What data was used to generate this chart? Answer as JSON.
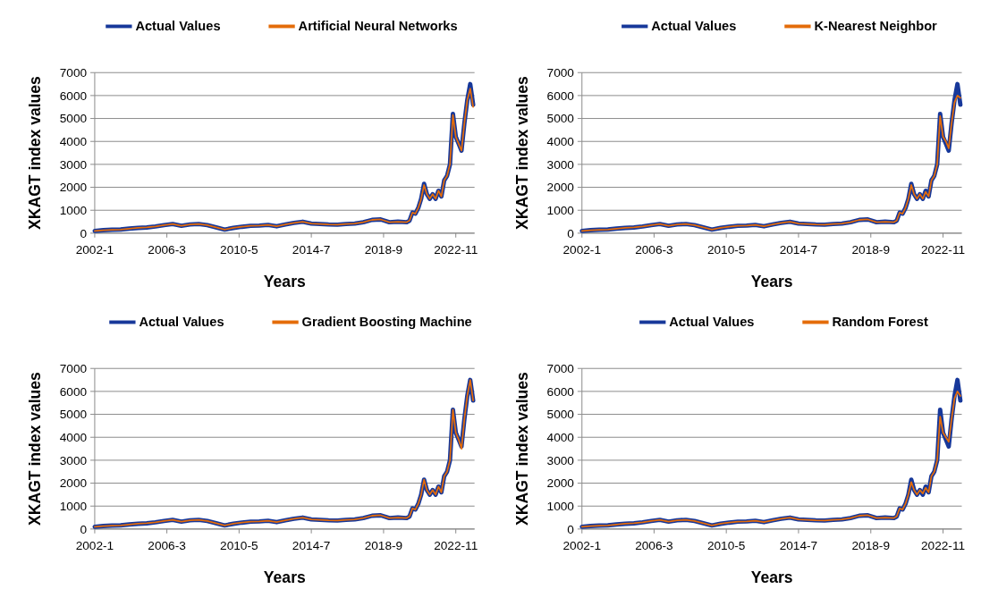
{
  "chart_data": [
    {
      "type": "line",
      "xlabel": "Years",
      "ylabel": "XKAGT index values",
      "legend": "top",
      "grid": "y",
      "ylim": [
        0,
        7000
      ],
      "yticks": [
        0,
        1000,
        2000,
        3000,
        4000,
        5000,
        6000,
        7000
      ],
      "xlim": [
        "2002-01",
        "2023-12"
      ],
      "xticks": [
        {
          "value": "2002-01",
          "label": "2002-1"
        },
        {
          "value": "2006-03",
          "label": "2006-3"
        },
        {
          "value": "2010-05",
          "label": "2010-5"
        },
        {
          "value": "2014-07",
          "label": "2014-7"
        },
        {
          "value": "2018-09",
          "label": "2018-9"
        },
        {
          "value": "2022-11",
          "label": "2022-11"
        }
      ],
      "x": [
        "2002-01",
        "2002-07",
        "2003-01",
        "2003-07",
        "2004-01",
        "2004-07",
        "2005-01",
        "2005-07",
        "2006-01",
        "2006-07",
        "2007-01",
        "2007-07",
        "2008-01",
        "2008-07",
        "2009-01",
        "2009-07",
        "2010-01",
        "2010-07",
        "2011-01",
        "2011-07",
        "2012-01",
        "2012-07",
        "2013-01",
        "2013-07",
        "2014-01",
        "2014-07",
        "2015-01",
        "2015-07",
        "2016-01",
        "2016-07",
        "2017-01",
        "2017-07",
        "2018-01",
        "2018-07",
        "2019-01",
        "2019-07",
        "2020-01",
        "2020-03",
        "2020-05",
        "2020-07",
        "2020-09",
        "2020-11",
        "2021-01",
        "2021-03",
        "2021-05",
        "2021-07",
        "2021-09",
        "2021-11",
        "2022-01",
        "2022-03",
        "2022-05",
        "2022-07",
        "2022-09",
        "2022-11",
        "2023-01",
        "2023-03",
        "2023-05",
        "2023-07",
        "2023-09",
        "2023-11"
      ],
      "series": [
        {
          "name": "Actual Values",
          "color": "#17389a",
          "values": [
            100,
            130,
            150,
            160,
            200,
            230,
            250,
            290,
            350,
            400,
            320,
            380,
            400,
            350,
            250,
            160,
            230,
            280,
            320,
            330,
            360,
            300,
            380,
            450,
            500,
            420,
            400,
            380,
            370,
            400,
            420,
            480,
            580,
            600,
            480,
            500,
            480,
            550,
            900,
            850,
            1100,
            1500,
            2150,
            1700,
            1500,
            1700,
            1500,
            1850,
            1600,
            2300,
            2500,
            3000,
            5200,
            4200,
            3900,
            3600,
            4800,
            5800,
            6500,
            5600
          ]
        },
        {
          "name": "Artificial Neural Networks",
          "color": "#e46c0a",
          "values": [
            100,
            130,
            150,
            160,
            200,
            230,
            250,
            290,
            350,
            400,
            320,
            380,
            400,
            350,
            250,
            160,
            230,
            280,
            320,
            330,
            360,
            300,
            380,
            450,
            500,
            420,
            400,
            380,
            370,
            400,
            420,
            480,
            580,
            600,
            480,
            500,
            480,
            550,
            900,
            850,
            1100,
            1500,
            2100,
            1700,
            1500,
            1700,
            1500,
            1850,
            1600,
            2300,
            2500,
            3000,
            5150,
            4200,
            3900,
            3600,
            4800,
            5800,
            6300,
            5500
          ]
        }
      ]
    },
    {
      "type": "line",
      "xlabel": "Years",
      "ylabel": "XKAGT index values",
      "legend": "top",
      "grid": "y",
      "ylim": [
        0,
        7000
      ],
      "yticks": [
        0,
        1000,
        2000,
        3000,
        4000,
        5000,
        6000,
        7000
      ],
      "xlim": [
        "2002-01",
        "2023-12"
      ],
      "xticks": [
        {
          "value": "2002-01",
          "label": "2002-1"
        },
        {
          "value": "2006-03",
          "label": "2006-3"
        },
        {
          "value": "2010-05",
          "label": "2010-5"
        },
        {
          "value": "2014-07",
          "label": "2014-7"
        },
        {
          "value": "2018-09",
          "label": "2018-9"
        },
        {
          "value": "2022-11",
          "label": "2022-11"
        }
      ],
      "x": [
        "2002-01",
        "2002-07",
        "2003-01",
        "2003-07",
        "2004-01",
        "2004-07",
        "2005-01",
        "2005-07",
        "2006-01",
        "2006-07",
        "2007-01",
        "2007-07",
        "2008-01",
        "2008-07",
        "2009-01",
        "2009-07",
        "2010-01",
        "2010-07",
        "2011-01",
        "2011-07",
        "2012-01",
        "2012-07",
        "2013-01",
        "2013-07",
        "2014-01",
        "2014-07",
        "2015-01",
        "2015-07",
        "2016-01",
        "2016-07",
        "2017-01",
        "2017-07",
        "2018-01",
        "2018-07",
        "2019-01",
        "2019-07",
        "2020-01",
        "2020-03",
        "2020-05",
        "2020-07",
        "2020-09",
        "2020-11",
        "2021-01",
        "2021-03",
        "2021-05",
        "2021-07",
        "2021-09",
        "2021-11",
        "2022-01",
        "2022-03",
        "2022-05",
        "2022-07",
        "2022-09",
        "2022-11",
        "2023-01",
        "2023-03",
        "2023-05",
        "2023-07",
        "2023-09",
        "2023-11"
      ],
      "series": [
        {
          "name": "Actual Values",
          "color": "#17389a",
          "values": [
            100,
            130,
            150,
            160,
            200,
            230,
            250,
            290,
            350,
            400,
            320,
            380,
            400,
            350,
            250,
            160,
            230,
            280,
            320,
            330,
            360,
            300,
            380,
            450,
            500,
            420,
            400,
            380,
            370,
            400,
            420,
            480,
            580,
            600,
            480,
            500,
            480,
            550,
            900,
            850,
            1100,
            1500,
            2150,
            1700,
            1500,
            1700,
            1500,
            1850,
            1600,
            2300,
            2500,
            3000,
            5200,
            4200,
            3900,
            3600,
            4800,
            5800,
            6500,
            5600
          ]
        },
        {
          "name": "K-Nearest Neighbor",
          "color": "#e46c0a",
          "values": [
            100,
            130,
            150,
            160,
            200,
            230,
            250,
            290,
            350,
            400,
            320,
            380,
            400,
            350,
            250,
            160,
            230,
            280,
            320,
            330,
            360,
            300,
            380,
            450,
            500,
            420,
            400,
            380,
            370,
            400,
            420,
            480,
            580,
            600,
            480,
            500,
            480,
            550,
            900,
            850,
            1100,
            1500,
            2100,
            1700,
            1500,
            1700,
            1500,
            1800,
            1600,
            2300,
            2500,
            3000,
            5100,
            4200,
            4000,
            3700,
            4800,
            5700,
            6000,
            5900
          ]
        }
      ]
    },
    {
      "type": "line",
      "xlabel": "Years",
      "ylabel": "XKAGT index values",
      "legend": "top",
      "grid": "y",
      "ylim": [
        0,
        7000
      ],
      "yticks": [
        0,
        1000,
        2000,
        3000,
        4000,
        5000,
        6000,
        7000
      ],
      "xlim": [
        "2002-01",
        "2023-12"
      ],
      "xticks": [
        {
          "value": "2002-01",
          "label": "2002-1"
        },
        {
          "value": "2006-03",
          "label": "2006-3"
        },
        {
          "value": "2010-05",
          "label": "2010-5"
        },
        {
          "value": "2014-07",
          "label": "2014-7"
        },
        {
          "value": "2018-09",
          "label": "2018-9"
        },
        {
          "value": "2022-11",
          "label": "2022-11"
        }
      ],
      "x": [
        "2002-01",
        "2002-07",
        "2003-01",
        "2003-07",
        "2004-01",
        "2004-07",
        "2005-01",
        "2005-07",
        "2006-01",
        "2006-07",
        "2007-01",
        "2007-07",
        "2008-01",
        "2008-07",
        "2009-01",
        "2009-07",
        "2010-01",
        "2010-07",
        "2011-01",
        "2011-07",
        "2012-01",
        "2012-07",
        "2013-01",
        "2013-07",
        "2014-01",
        "2014-07",
        "2015-01",
        "2015-07",
        "2016-01",
        "2016-07",
        "2017-01",
        "2017-07",
        "2018-01",
        "2018-07",
        "2019-01",
        "2019-07",
        "2020-01",
        "2020-03",
        "2020-05",
        "2020-07",
        "2020-09",
        "2020-11",
        "2021-01",
        "2021-03",
        "2021-05",
        "2021-07",
        "2021-09",
        "2021-11",
        "2022-01",
        "2022-03",
        "2022-05",
        "2022-07",
        "2022-09",
        "2022-11",
        "2023-01",
        "2023-03",
        "2023-05",
        "2023-07",
        "2023-09",
        "2023-11"
      ],
      "series": [
        {
          "name": "Actual Values",
          "color": "#17389a",
          "values": [
            100,
            130,
            150,
            160,
            200,
            230,
            250,
            290,
            350,
            400,
            320,
            380,
            400,
            350,
            250,
            160,
            230,
            280,
            320,
            330,
            360,
            300,
            380,
            450,
            500,
            420,
            400,
            380,
            370,
            400,
            420,
            480,
            580,
            600,
            480,
            500,
            480,
            550,
            900,
            850,
            1100,
            1500,
            2150,
            1700,
            1500,
            1700,
            1500,
            1850,
            1600,
            2300,
            2500,
            3000,
            5200,
            4200,
            3900,
            3600,
            4800,
            5800,
            6500,
            5600
          ]
        },
        {
          "name": "Gradient Boosting Machine",
          "color": "#e46c0a",
          "values": [
            100,
            130,
            150,
            160,
            200,
            230,
            250,
            290,
            350,
            400,
            320,
            380,
            400,
            350,
            250,
            160,
            230,
            280,
            320,
            330,
            360,
            300,
            380,
            450,
            500,
            420,
            400,
            380,
            370,
            400,
            420,
            480,
            580,
            600,
            480,
            500,
            480,
            550,
            900,
            850,
            1100,
            1500,
            2150,
            1700,
            1500,
            1700,
            1500,
            1850,
            1600,
            2300,
            2500,
            3000,
            5200,
            4200,
            3900,
            3500,
            4800,
            5800,
            6500,
            5600
          ]
        }
      ]
    },
    {
      "type": "line",
      "xlabel": "Years",
      "ylabel": "XKAGT index values",
      "legend": "top",
      "grid": "y",
      "ylim": [
        0,
        7000
      ],
      "yticks": [
        0,
        1000,
        2000,
        3000,
        4000,
        5000,
        6000,
        7000
      ],
      "xlim": [
        "2002-01",
        "2023-12"
      ],
      "xticks": [
        {
          "value": "2002-01",
          "label": "2002-1"
        },
        {
          "value": "2006-03",
          "label": "2006-3"
        },
        {
          "value": "2010-05",
          "label": "2010-5"
        },
        {
          "value": "2014-07",
          "label": "2014-7"
        },
        {
          "value": "2018-09",
          "label": "2018-9"
        },
        {
          "value": "2022-11",
          "label": "2022-11"
        }
      ],
      "x": [
        "2002-01",
        "2002-07",
        "2003-01",
        "2003-07",
        "2004-01",
        "2004-07",
        "2005-01",
        "2005-07",
        "2006-01",
        "2006-07",
        "2007-01",
        "2007-07",
        "2008-01",
        "2008-07",
        "2009-01",
        "2009-07",
        "2010-01",
        "2010-07",
        "2011-01",
        "2011-07",
        "2012-01",
        "2012-07",
        "2013-01",
        "2013-07",
        "2014-01",
        "2014-07",
        "2015-01",
        "2015-07",
        "2016-01",
        "2016-07",
        "2017-01",
        "2017-07",
        "2018-01",
        "2018-07",
        "2019-01",
        "2019-07",
        "2020-01",
        "2020-03",
        "2020-05",
        "2020-07",
        "2020-09",
        "2020-11",
        "2021-01",
        "2021-03",
        "2021-05",
        "2021-07",
        "2021-09",
        "2021-11",
        "2022-01",
        "2022-03",
        "2022-05",
        "2022-07",
        "2022-09",
        "2022-11",
        "2023-01",
        "2023-03",
        "2023-05",
        "2023-07",
        "2023-09",
        "2023-11"
      ],
      "series": [
        {
          "name": "Actual Values",
          "color": "#17389a",
          "values": [
            100,
            130,
            150,
            160,
            200,
            230,
            250,
            290,
            350,
            400,
            320,
            380,
            400,
            350,
            250,
            160,
            230,
            280,
            320,
            330,
            360,
            300,
            380,
            450,
            500,
            420,
            400,
            380,
            370,
            400,
            420,
            480,
            580,
            600,
            480,
            500,
            480,
            550,
            900,
            850,
            1100,
            1500,
            2150,
            1700,
            1500,
            1700,
            1500,
            1850,
            1600,
            2300,
            2500,
            3000,
            5200,
            4200,
            3900,
            3600,
            4800,
            5800,
            6500,
            5600
          ]
        },
        {
          "name": "Random Forest",
          "color": "#e46c0a",
          "values": [
            100,
            130,
            150,
            160,
            200,
            230,
            250,
            290,
            350,
            400,
            320,
            380,
            400,
            350,
            250,
            160,
            230,
            280,
            320,
            330,
            360,
            300,
            380,
            450,
            500,
            420,
            400,
            380,
            370,
            400,
            420,
            480,
            580,
            600,
            480,
            500,
            480,
            550,
            900,
            850,
            1100,
            1500,
            2050,
            1700,
            1500,
            1700,
            1550,
            1800,
            1600,
            2300,
            2500,
            3000,
            4900,
            4200,
            4000,
            3800,
            4800,
            5700,
            6000,
            5800
          ]
        }
      ]
    }
  ]
}
